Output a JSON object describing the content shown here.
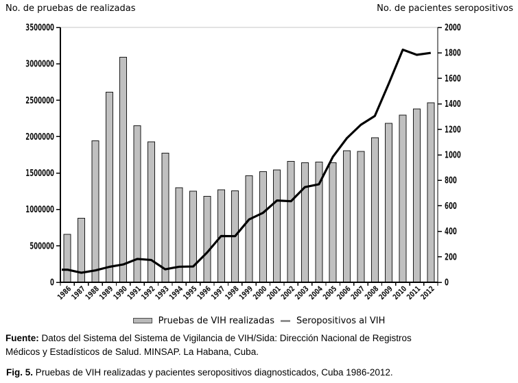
{
  "figure": {
    "left_axis_title": "No. de pruebas de realizadas",
    "right_axis_title": "No. de pacientes seropositivos",
    "legend": [
      {
        "kind": "bar",
        "label": "Pruebas de VIH realizadas"
      },
      {
        "kind": "line",
        "label": "Seropositivos al VIH"
      }
    ],
    "source": {
      "label": "Fuente:",
      "line1": "Datos del Sistema del Sistema de Vigilancia de VIH/Sida: Dirección Nacional de Registros",
      "line2": "Médicos y Estadísticos de Salud. MINSAP. La Habana, Cuba."
    },
    "caption": {
      "label": "Fig. 5.",
      "text": "Pruebas de VIH realizadas y pacientes seropositivos diagnosticados, Cuba 1986-2012."
    }
  },
  "colors": {
    "bar_fill": "#c0c0c0",
    "bar_border": "#1a1a1a",
    "line": "#000000",
    "gridline": "#d9d9d9",
    "axis": "#000000"
  },
  "chart_data": {
    "type": "bar",
    "combo": "bars with overlaid line, dual y-axes",
    "categories": [
      "1986",
      "1987",
      "1988",
      "1989",
      "1990",
      "1991",
      "1992",
      "1993",
      "1994",
      "1995",
      "1996",
      "1997",
      "1998",
      "1999",
      "2000",
      "2001",
      "2002",
      "2003",
      "2004",
      "2005",
      "2006",
      "2007",
      "2008",
      "2009",
      "2010",
      "2011",
      "2012"
    ],
    "series": [
      {
        "name": "Pruebas de VIH realizadas",
        "kind": "bar",
        "axis": "left",
        "values": [
          660000,
          880000,
          1945000,
          2610000,
          3090000,
          2150000,
          1930000,
          1775000,
          1300000,
          1250000,
          1180000,
          1270000,
          1255000,
          1465000,
          1520000,
          1545000,
          1660000,
          1640000,
          1650000,
          1640000,
          1805000,
          1795000,
          1985000,
          2185000,
          2295000,
          2380000,
          2465000
        ]
      },
      {
        "name": "Seropositivos al VIH",
        "kind": "line",
        "axis": "right",
        "values": [
          99,
          75,
          93,
          121,
          140,
          183,
          175,
          102,
          122,
          124,
          234,
          363,
          362,
          493,
          545,
          642,
          636,
          747,
          769,
          985,
          1131,
          1236,
          1305,
          1560,
          1825,
          1785,
          1800
        ]
      }
    ],
    "left_axis": {
      "title": "No. de pruebas de realizadas",
      "min": 0,
      "max": 3500000,
      "step": 500000
    },
    "right_axis": {
      "title": "No. de pacientes seropositivos",
      "min": 0,
      "max": 2000,
      "step": 200
    },
    "grid": "single light horizontal gridline at top (3500000 / 2000)",
    "legend_position": "bottom-center",
    "x_tick_label_rotation": -45
  }
}
